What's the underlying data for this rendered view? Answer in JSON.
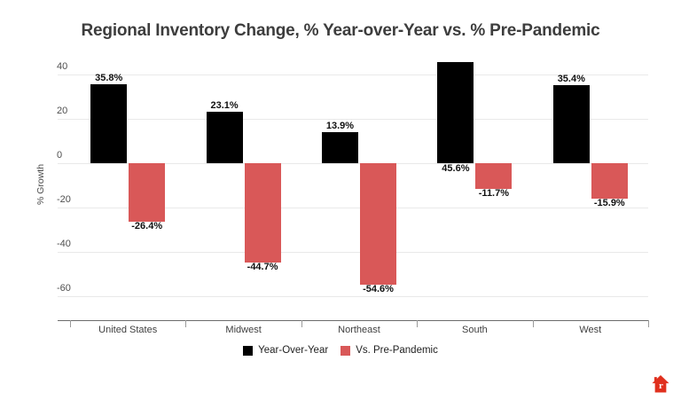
{
  "title": "Regional Inventory Change, % Year-over-Year vs. % Pre-Pandemic",
  "colors": {
    "background": "#ffffff",
    "title_text": "#3d3d3d",
    "axis_text": "#4a4a4a",
    "gridline": "#e9e9e9",
    "axis_line": "#6b6b6b",
    "bar_black": "#000000",
    "bar_red": "#d95858",
    "logo_red": "#e0301e"
  },
  "chart_data": {
    "type": "bar",
    "title": "Regional Inventory Change, % Year-over-Year vs. % Pre-Pandemic",
    "xlabel": "",
    "ylabel": "% Growth",
    "categories": [
      "United States",
      "Midwest",
      "Northeast",
      "South",
      "West"
    ],
    "series": [
      {
        "name": "Year-Over-Year",
        "color": "#000000",
        "values": [
          35.8,
          23.1,
          13.9,
          45.6,
          35.4
        ],
        "labels": [
          "35.8%",
          "23.1%",
          "13.9%",
          "45.6%",
          "35.4%"
        ]
      },
      {
        "name": "Vs. Pre-Pandemic",
        "color": "#d95858",
        "values": [
          -26.4,
          -44.7,
          -54.6,
          -11.7,
          -15.9
        ],
        "labels": [
          "-26.4%",
          "-44.7%",
          "-54.6%",
          "-11.7%",
          "-15.9%"
        ]
      }
    ],
    "y_ticks": [
      40,
      20,
      0,
      -20,
      -40,
      -60
    ],
    "ylim": [
      -71,
      47
    ],
    "grid": true,
    "legend_position": "bottom",
    "value_labels": true
  },
  "branding": {
    "icon": "realtor-home-icon",
    "letter": "r"
  }
}
